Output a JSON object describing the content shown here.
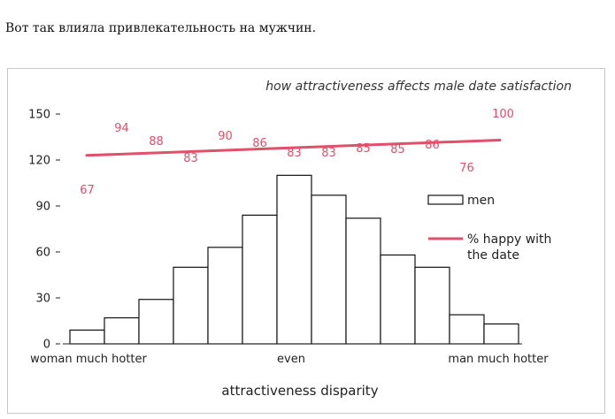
{
  "page": {
    "caption": "Вот так влияла привлекательность на мужчин."
  },
  "colors": {
    "bars_fill": "#ffffff",
    "bars_stroke": "#111111",
    "line": "#e0506a",
    "labels": "#e0506a"
  },
  "chart_data": {
    "type": "bar",
    "title": "how attractiveness affects male date satisfaction",
    "xlabel": "attractiveness disparity",
    "ylabel": "",
    "ylim": [
      0,
      150
    ],
    "yticks": [
      0,
      30,
      60,
      90,
      120,
      150
    ],
    "x_category_labels": [
      "woman much hotter",
      "even",
      "man much hotter"
    ],
    "grid": false,
    "legend_position": "right",
    "series": [
      {
        "name": "men",
        "type": "bar",
        "values": [
          9,
          17,
          29,
          50,
          63,
          84,
          110,
          97,
          82,
          58,
          50,
          19,
          13
        ]
      },
      {
        "name": "% happy with the date",
        "type": "line",
        "endpoints": [
          123,
          133
        ]
      }
    ],
    "data_labels": [
      67,
      94,
      88,
      83,
      90,
      86,
      83,
      83,
      85,
      85,
      86,
      76,
      100
    ]
  }
}
